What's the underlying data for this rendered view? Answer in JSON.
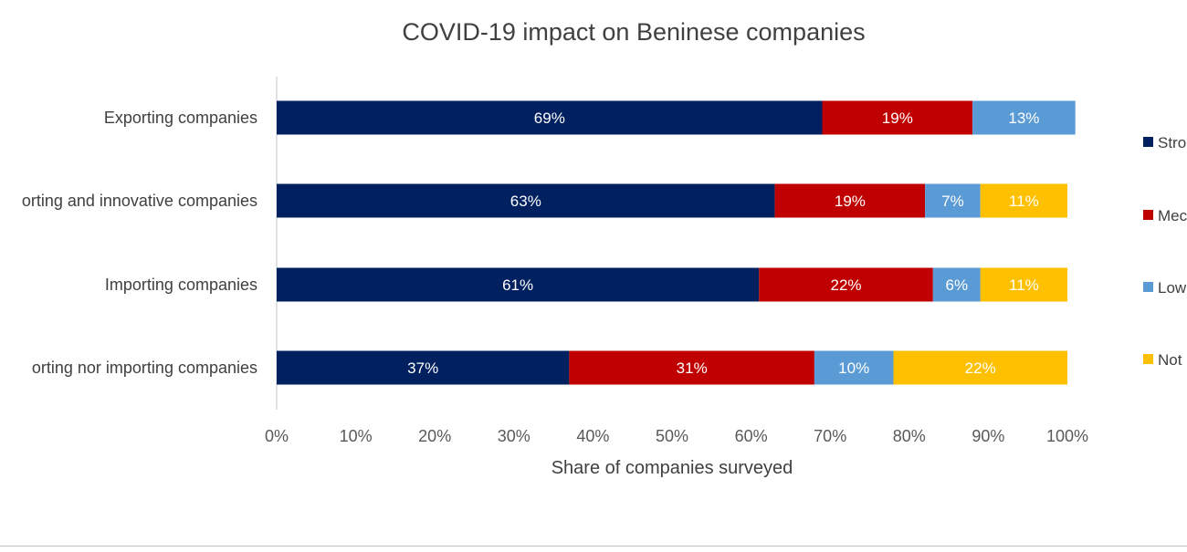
{
  "chart_data": {
    "type": "bar",
    "orientation": "horizontal",
    "stacked": true,
    "title": "COVID-19 impact on Beninese companies",
    "xlabel": "Share of companies surveyed",
    "ylabel": "",
    "xlim": [
      0,
      100
    ],
    "x_ticks": [
      "0%",
      "10%",
      "20%",
      "30%",
      "40%",
      "50%",
      "60%",
      "70%",
      "80%",
      "90%",
      "100%"
    ],
    "grid": false,
    "legend_position": "right",
    "categories": [
      "Exporting companies",
      "Exporting and innovative companies",
      "Importing companies",
      "Neither exporting nor importing companies"
    ],
    "category_labels_visible": [
      "Exporting companies",
      "orting and innovative companies",
      "Importing companies",
      "orting nor importing companies"
    ],
    "series": [
      {
        "legend_label": "Stro",
        "color": "#002060",
        "values": [
          69,
          63,
          61,
          37
        ],
        "labels": [
          "69%",
          "63%",
          "61%",
          "37%"
        ]
      },
      {
        "legend_label": "Mec",
        "color": "#c00000",
        "values": [
          19,
          19,
          22,
          31
        ],
        "labels": [
          "19%",
          "19%",
          "22%",
          "31%"
        ]
      },
      {
        "legend_label": "Low",
        "color": "#5b9bd5",
        "values": [
          13,
          7,
          6,
          10
        ],
        "labels": [
          "13%",
          "7%",
          "6%",
          "10%"
        ]
      },
      {
        "legend_label": "Not",
        "color": "#ffc000",
        "values": [
          0,
          11,
          11,
          22
        ],
        "labels": [
          "",
          "11%",
          "11%",
          "22%"
        ]
      }
    ]
  }
}
